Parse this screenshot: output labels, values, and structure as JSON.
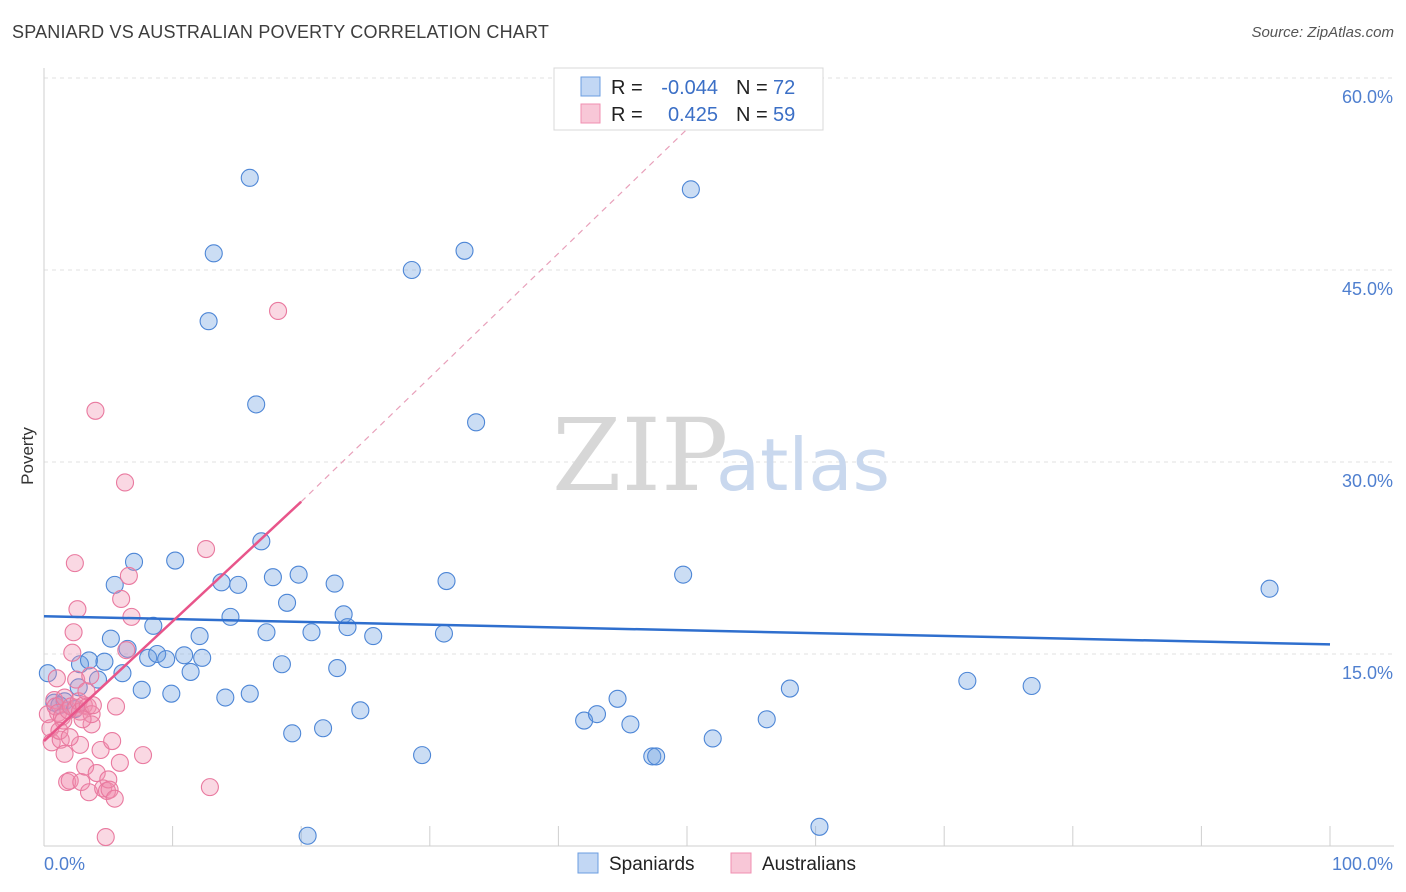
{
  "title": "SPANIARD VS AUSTRALIAN POVERTY CORRELATION CHART",
  "source": "Source: ZipAtlas.com",
  "watermark": {
    "zip": "ZIP",
    "atlas": "atlas"
  },
  "colors": {
    "blue": "#6b9de0",
    "pink": "#f08fb0",
    "blue_line": "#2f6fce",
    "pink_line": "#e8558a",
    "tick": "#4f7fcf"
  },
  "chart_data": {
    "type": "scatter",
    "title": "SPANIARD VS AUSTRALIAN POVERTY CORRELATION CHART",
    "xlabel": "",
    "ylabel": "Poverty",
    "xlim": [
      0,
      100
    ],
    "ylim": [
      0,
      60
    ],
    "x_tick_labels": [
      "0.0%",
      "100.0%"
    ],
    "y_ticks": [
      {
        "value": 15,
        "label": "15.0%"
      },
      {
        "value": 30,
        "label": "30.0%"
      },
      {
        "value": 45,
        "label": "45.0%"
      },
      {
        "value": 60,
        "label": "60.0%"
      }
    ],
    "grid": true,
    "legend": {
      "placement": "top-center",
      "entries": [
        {
          "series": "Spaniards",
          "r_label": "R =",
          "r_value": "-0.044",
          "n_label": "N =",
          "n_value": "72"
        },
        {
          "series": "Australians",
          "r_label": "R =",
          "r_value": "0.425",
          "n_label": "N =",
          "n_value": "59"
        }
      ]
    },
    "series": [
      {
        "name": "Spaniards",
        "color": "#6b9de0",
        "trend": {
          "x0": 0,
          "y0": 17.95,
          "x1": 100,
          "y1": 15.75
        },
        "points": [
          [
            0.3,
            13.5
          ],
          [
            0.8,
            11.2
          ],
          [
            1.6,
            11.3
          ],
          [
            2.4,
            10.7
          ],
          [
            2.7,
            12.4
          ],
          [
            2.8,
            14.2
          ],
          [
            3.5,
            14.5
          ],
          [
            4.2,
            13.0
          ],
          [
            4.7,
            14.4
          ],
          [
            5.2,
            16.2
          ],
          [
            5.5,
            20.4
          ],
          [
            6.1,
            13.5
          ],
          [
            6.5,
            15.4
          ],
          [
            7.0,
            22.2
          ],
          [
            7.6,
            12.2
          ],
          [
            8.1,
            14.7
          ],
          [
            8.5,
            17.2
          ],
          [
            8.8,
            15.0
          ],
          [
            9.5,
            14.6
          ],
          [
            9.9,
            11.9
          ],
          [
            10.2,
            22.3
          ],
          [
            10.9,
            14.9
          ],
          [
            11.4,
            13.6
          ],
          [
            12.1,
            16.4
          ],
          [
            12.3,
            14.7
          ],
          [
            12.8,
            41.0
          ],
          [
            13.2,
            46.3
          ],
          [
            13.8,
            20.6
          ],
          [
            14.1,
            11.6
          ],
          [
            14.5,
            17.9
          ],
          [
            15.1,
            20.4
          ],
          [
            16.0,
            11.9
          ],
          [
            16.5,
            34.5
          ],
          [
            16.9,
            23.8
          ],
          [
            17.3,
            16.7
          ],
          [
            17.8,
            21.0
          ],
          [
            18.5,
            14.2
          ],
          [
            18.9,
            19.0
          ],
          [
            19.3,
            8.8
          ],
          [
            19.8,
            21.2
          ],
          [
            20.5,
            0.8
          ],
          [
            20.8,
            16.7
          ],
          [
            21.7,
            9.2
          ],
          [
            22.6,
            20.5
          ],
          [
            22.8,
            13.9
          ],
          [
            23.3,
            18.1
          ],
          [
            23.6,
            17.1
          ],
          [
            24.6,
            10.6
          ],
          [
            25.6,
            16.4
          ],
          [
            29.4,
            7.1
          ],
          [
            31.1,
            16.6
          ],
          [
            31.3,
            20.7
          ],
          [
            32.7,
            46.5
          ],
          [
            33.6,
            33.1
          ],
          [
            42.0,
            9.8
          ],
          [
            43.0,
            10.3
          ],
          [
            44.6,
            11.5
          ],
          [
            45.6,
            9.5
          ],
          [
            47.3,
            7.0
          ],
          [
            47.6,
            7.0
          ],
          [
            49.7,
            21.2
          ],
          [
            50.3,
            51.3
          ],
          [
            52.0,
            8.4
          ],
          [
            56.2,
            9.9
          ],
          [
            58.0,
            12.3
          ],
          [
            60.3,
            1.5
          ],
          [
            71.8,
            12.9
          ],
          [
            76.8,
            12.5
          ],
          [
            95.3,
            20.1
          ],
          [
            16.0,
            52.2
          ],
          [
            28.6,
            45.0
          ],
          [
            1.2,
            11.0
          ]
        ]
      },
      {
        "name": "Australians",
        "color": "#f08fb0",
        "trend": {
          "x0": 0,
          "y0": 8.2,
          "x1": 20,
          "y1": 26.9
        },
        "trend_extended": {
          "x0": 20,
          "y0": 26.9,
          "x1": 50,
          "y1": 56.0
        },
        "points": [
          [
            0.3,
            10.3
          ],
          [
            0.5,
            9.2
          ],
          [
            0.6,
            8.1
          ],
          [
            0.8,
            11.4
          ],
          [
            0.9,
            10.9
          ],
          [
            1.0,
            13.1
          ],
          [
            1.1,
            10.4
          ],
          [
            1.3,
            8.3
          ],
          [
            1.4,
            10.1
          ],
          [
            1.5,
            9.8
          ],
          [
            1.6,
            7.2
          ],
          [
            1.6,
            11.6
          ],
          [
            1.8,
            5.0
          ],
          [
            1.9,
            10.6
          ],
          [
            2.0,
            5.1
          ],
          [
            2.1,
            10.9
          ],
          [
            2.2,
            15.1
          ],
          [
            2.3,
            16.7
          ],
          [
            2.4,
            22.1
          ],
          [
            2.5,
            10.8
          ],
          [
            2.5,
            13.0
          ],
          [
            2.6,
            18.5
          ],
          [
            2.7,
            11.3
          ],
          [
            2.8,
            7.9
          ],
          [
            2.8,
            10.5
          ],
          [
            2.9,
            5.0
          ],
          [
            3.1,
            11.0
          ],
          [
            3.2,
            6.2
          ],
          [
            3.3,
            12.1
          ],
          [
            3.4,
            10.9
          ],
          [
            3.5,
            4.2
          ],
          [
            3.6,
            13.3
          ],
          [
            3.7,
            9.5
          ],
          [
            3.7,
            10.3
          ],
          [
            3.8,
            11.0
          ],
          [
            4.0,
            34.0
          ],
          [
            4.1,
            5.7
          ],
          [
            4.4,
            7.5
          ],
          [
            4.6,
            4.5
          ],
          [
            4.9,
            4.3
          ],
          [
            5.0,
            5.2
          ],
          [
            5.1,
            4.4
          ],
          [
            5.3,
            8.2
          ],
          [
            5.5,
            3.7
          ],
          [
            5.6,
            10.9
          ],
          [
            5.9,
            6.5
          ],
          [
            6.0,
            19.3
          ],
          [
            6.3,
            28.4
          ],
          [
            6.4,
            15.3
          ],
          [
            6.6,
            21.1
          ],
          [
            6.8,
            17.9
          ],
          [
            7.7,
            7.1
          ],
          [
            12.6,
            23.2
          ],
          [
            12.9,
            4.6
          ],
          [
            18.2,
            41.8
          ],
          [
            4.8,
            0.7
          ],
          [
            3.0,
            9.9
          ],
          [
            1.2,
            9.0
          ],
          [
            2.0,
            8.5
          ]
        ]
      }
    ]
  },
  "bottom_legend": [
    {
      "label": "Spaniards",
      "color": "#6b9de0"
    },
    {
      "label": "Australians",
      "color": "#f08fb0"
    }
  ]
}
